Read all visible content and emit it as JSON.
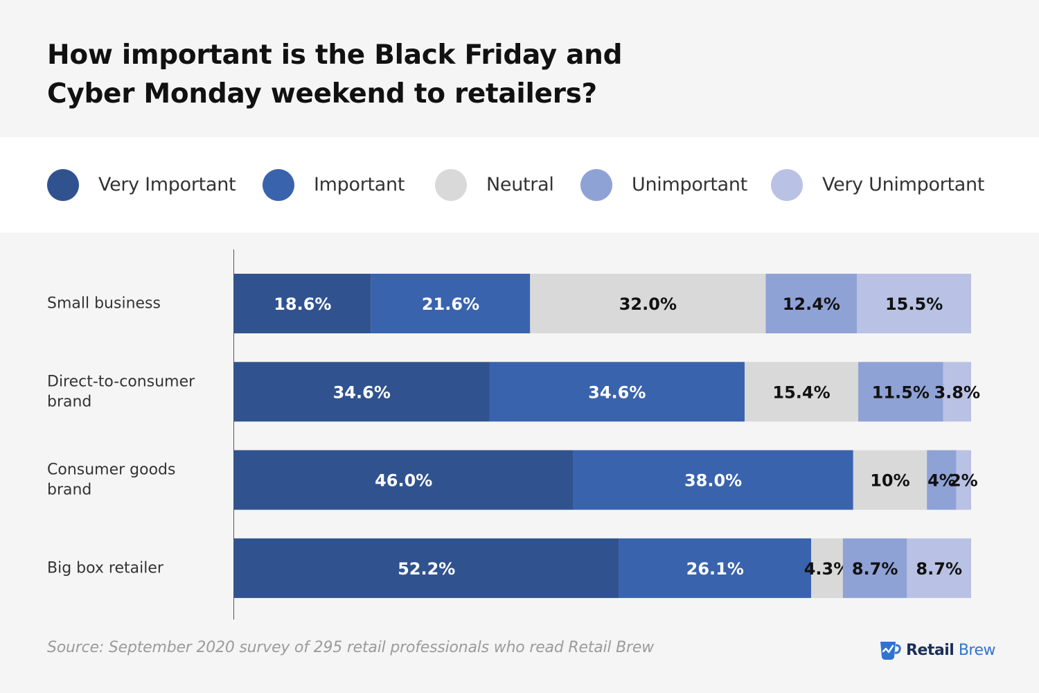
{
  "header": {
    "title": "How important is the Black Friday and\nCyber Monday weekend to retailers?"
  },
  "legend": [
    {
      "label": "Very Important",
      "color": "#30538f"
    },
    {
      "label": "Important",
      "color": "#3a63ad"
    },
    {
      "label": "Neutral",
      "color": "#d9d9d9"
    },
    {
      "label": "Unimportant",
      "color": "#8fa2d6"
    },
    {
      "label": "Very Unimportant",
      "color": "#b9c2e4"
    }
  ],
  "chart_data": {
    "type": "bar",
    "orientation": "horizontal",
    "stacked": true,
    "categories": [
      "Small business",
      "Direct-to-consumer brand",
      "Consumer goods brand",
      "Big box retailer"
    ],
    "series": [
      {
        "name": "Very Important",
        "color": "#30538f",
        "values": [
          18.6,
          34.6,
          46.0,
          52.2
        ],
        "labels": [
          "18.6%",
          "34.6%",
          "46.0%",
          "52.2%"
        ]
      },
      {
        "name": "Important",
        "color": "#3a63ad",
        "values": [
          21.6,
          34.6,
          38.0,
          26.1
        ],
        "labels": [
          "21.6%",
          "34.6%",
          "38.0%",
          "26.1%"
        ]
      },
      {
        "name": "Neutral",
        "color": "#d9d9d9",
        "values": [
          32.0,
          15.4,
          10,
          4.3
        ],
        "labels": [
          "32.0%",
          "15.4%",
          "10%",
          "4.3%"
        ]
      },
      {
        "name": "Unimportant",
        "color": "#8fa2d6",
        "values": [
          12.4,
          11.5,
          4,
          8.7
        ],
        "labels": [
          "12.4%",
          "11.5%",
          "4%",
          "8.7%"
        ]
      },
      {
        "name": "Very Unimportant",
        "color": "#b9c2e4",
        "values": [
          15.5,
          3.8,
          2,
          8.7
        ],
        "labels": [
          "15.5%",
          "3.8%",
          "2%",
          "8.7%"
        ]
      }
    ],
    "xlim": [
      0,
      100
    ],
    "grid": false,
    "legend_position": "top"
  },
  "footer": {
    "source": "Source: September 2020 survey of 295 retail professionals who read Retail Brew",
    "brand_retail": "Retail",
    "brand_brew": "Brew"
  }
}
